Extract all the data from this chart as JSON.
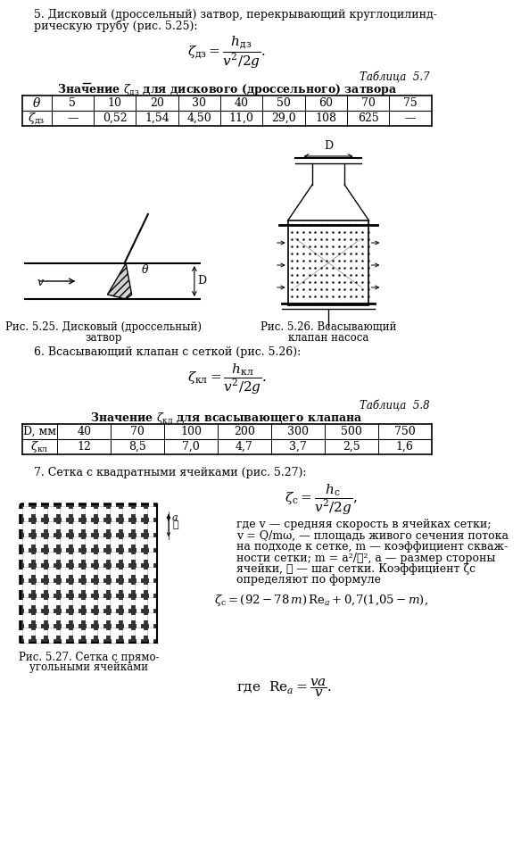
{
  "table57_title_label": "Таблица  5.7",
  "table57_row1": [
    "θ",
    "5",
    "10",
    "20",
    "30",
    "40",
    "50",
    "60",
    "70",
    "75"
  ],
  "table57_row2": [
    "ζдз",
    "—",
    "0,52",
    "1,54",
    "4,50",
    "11,0",
    "29,0",
    "108",
    "625",
    "—"
  ],
  "fig525_caption_1": "Рис. 5.25. Дисковый (дроссельный)",
  "fig525_caption_2": "затвор",
  "fig526_caption_1": "Рис. 5.26. Всасывающий",
  "fig526_caption_2": "клапан насоса",
  "table58_title_label": "Таблица  5.8",
  "table58_row1": [
    "D, мм",
    "40",
    "70",
    "100",
    "200",
    "300",
    "500",
    "750"
  ],
  "table58_row2": [
    "ζкл",
    "12",
    "8,5",
    "7,0",
    "4,7",
    "3,7",
    "2,5",
    "1,6"
  ],
  "fig527_caption_1": "Рис. 5.27. Сетка с прямо-",
  "fig527_caption_2": "угольными ячейками",
  "text7_line1": "где v — средняя скорость в ячейках сетки;",
  "text7_line2": "v = Q/mω, — площадь живого сечения потока",
  "text7_line3": "на подходе к сетке, m — коэффициент скваж-",
  "text7_line4": "ности сетки; m = a²/ℓ², a — размер стороны",
  "text7_line5": "ячейки, ℓ — шаг сетки. Коэффициент ζс",
  "text7_line6": "определяют по формуле",
  "bg_color": "#ffffff"
}
